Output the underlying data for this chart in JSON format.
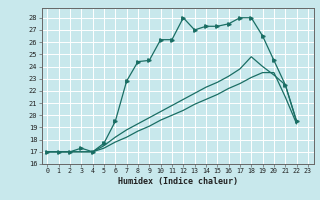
{
  "title": "",
  "xlabel": "Humidex (Indice chaleur)",
  "bg_color": "#c8e8ec",
  "grid_color": "#ffffff",
  "line_color": "#1a6e64",
  "xlim": [
    -0.5,
    23.5
  ],
  "ylim": [
    16,
    28.8
  ],
  "yticks": [
    16,
    17,
    18,
    19,
    20,
    21,
    22,
    23,
    24,
    25,
    26,
    27,
    28
  ],
  "xticks": [
    0,
    1,
    2,
    3,
    4,
    5,
    6,
    7,
    8,
    9,
    10,
    11,
    12,
    13,
    14,
    15,
    16,
    17,
    18,
    19,
    20,
    21,
    22,
    23
  ],
  "line1_x": [
    0,
    1,
    2,
    3,
    4,
    5,
    6,
    7,
    8,
    9,
    10,
    11,
    12,
    13,
    14,
    15,
    16,
    17,
    18,
    19,
    20,
    21,
    22
  ],
  "line1_y": [
    17,
    17,
    17,
    17.3,
    17,
    17.7,
    19.5,
    22.8,
    24.4,
    24.5,
    26.2,
    26.2,
    28.0,
    27.0,
    27.3,
    27.3,
    27.5,
    28.0,
    28.0,
    26.5,
    24.5,
    22.5,
    19.5
  ],
  "line2_x": [
    0,
    1,
    2,
    3,
    4,
    5,
    6,
    7,
    8,
    9,
    10,
    11,
    12,
    13,
    14,
    15,
    16,
    17,
    18,
    19,
    20,
    21,
    22
  ],
  "line2_y": [
    17,
    17,
    17,
    17,
    17,
    17.3,
    17.8,
    18.2,
    18.7,
    19.1,
    19.6,
    20.0,
    20.4,
    20.9,
    21.3,
    21.7,
    22.2,
    22.6,
    23.1,
    23.5,
    23.5,
    21.5,
    19.3
  ],
  "line3_x": [
    0,
    1,
    2,
    3,
    4,
    5,
    6,
    7,
    8,
    9,
    10,
    11,
    12,
    13,
    14,
    15,
    16,
    17,
    18,
    19,
    20,
    21,
    22
  ],
  "line3_y": [
    17,
    17,
    17,
    17,
    17,
    17.5,
    18.2,
    18.8,
    19.3,
    19.8,
    20.3,
    20.8,
    21.3,
    21.8,
    22.3,
    22.7,
    23.2,
    23.8,
    24.8,
    24.0,
    23.3,
    22.5,
    19.5
  ]
}
